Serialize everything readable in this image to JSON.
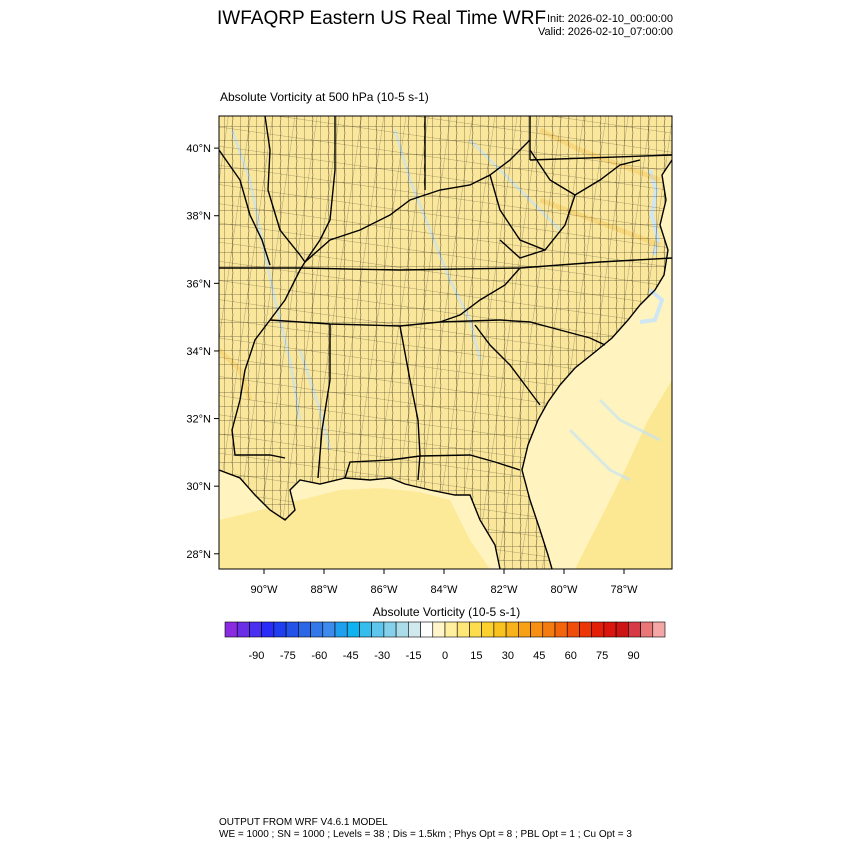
{
  "header": {
    "title": "IWFAQRP Eastern US Real Time WRF",
    "init": "Init: 2026-02-10_00:00:00",
    "valid": "Valid: 2026-02-10_07:00:00"
  },
  "map": {
    "field_title": "Absolute Vorticity at 500 hPa   (10-5 s-1)",
    "lon_range": [
      -91.5,
      -76.4
    ],
    "lat_range": [
      27.55,
      40.95
    ],
    "lat_ticks": [
      {
        "value": 28,
        "label": "28°N"
      },
      {
        "value": 30,
        "label": "30°N"
      },
      {
        "value": 32,
        "label": "32°N"
      },
      {
        "value": 34,
        "label": "34°N"
      },
      {
        "value": 36,
        "label": "36°N"
      },
      {
        "value": 38,
        "label": "38°N"
      },
      {
        "value": 40,
        "label": "40°N"
      }
    ],
    "lon_ticks": [
      {
        "value": -90,
        "label": "90°W"
      },
      {
        "value": -88,
        "label": "88°W"
      },
      {
        "value": -86,
        "label": "86°W"
      },
      {
        "value": -84,
        "label": "84°W"
      },
      {
        "value": -82,
        "label": "82°W"
      },
      {
        "value": -80,
        "label": "80°W"
      },
      {
        "value": -78,
        "label": "78°W"
      }
    ],
    "colors": {
      "land_fill": "#fbe79b",
      "ocean_fill": "#fff4bf",
      "boundary": "#000000",
      "ridge_streak": "#c9e4ef",
      "gulf_stream": "#f9d85a"
    }
  },
  "colorbar": {
    "title": "Absolute Vorticity  (10-5 s-1)",
    "colors": [
      "#8a2be2",
      "#6a2ee6",
      "#4a2ff0",
      "#2a2cf7",
      "#1e3ef0",
      "#2252e8",
      "#2a66e6",
      "#3378e8",
      "#3d8bec",
      "#1fa0ee",
      "#10b2f0",
      "#35bdee",
      "#5ec6ec",
      "#85d0ea",
      "#aadde9",
      "#cfe9ef",
      "#ffffff",
      "#fff5c8",
      "#ffef9f",
      "#fde777",
      "#fbdd4d",
      "#fbd02f",
      "#f9c21e",
      "#f8b21a",
      "#f7a116",
      "#f68f13",
      "#f47b10",
      "#f2650d",
      "#ef4d0a",
      "#ec3607",
      "#e41f08",
      "#d9150d",
      "#cc1414",
      "#d63a45",
      "#e97777",
      "#f5a6a6"
    ],
    "tick_labels": [
      {
        "value": -90,
        "label": "-90"
      },
      {
        "value": -75,
        "label": "-75"
      },
      {
        "value": -60,
        "label": "-60"
      },
      {
        "value": -45,
        "label": "-45"
      },
      {
        "value": -30,
        "label": "-30"
      },
      {
        "value": -15,
        "label": "-15"
      },
      {
        "value": 0,
        "label": "0"
      },
      {
        "value": 15,
        "label": "15"
      },
      {
        "value": 30,
        "label": "30"
      },
      {
        "value": 45,
        "label": "45"
      },
      {
        "value": 60,
        "label": "60"
      },
      {
        "value": 75,
        "label": "75"
      },
      {
        "value": 90,
        "label": "90"
      }
    ],
    "range": [
      -105,
      105
    ]
  },
  "footer": {
    "line1": "OUTPUT FROM WRF V4.6.1 MODEL",
    "line2": "WE = 1000 ; SN = 1000 ; Levels = 38 ; Dis = 1.5km ; Phys Opt = 8 ; PBL Opt = 1 ; Cu Opt = 3"
  }
}
